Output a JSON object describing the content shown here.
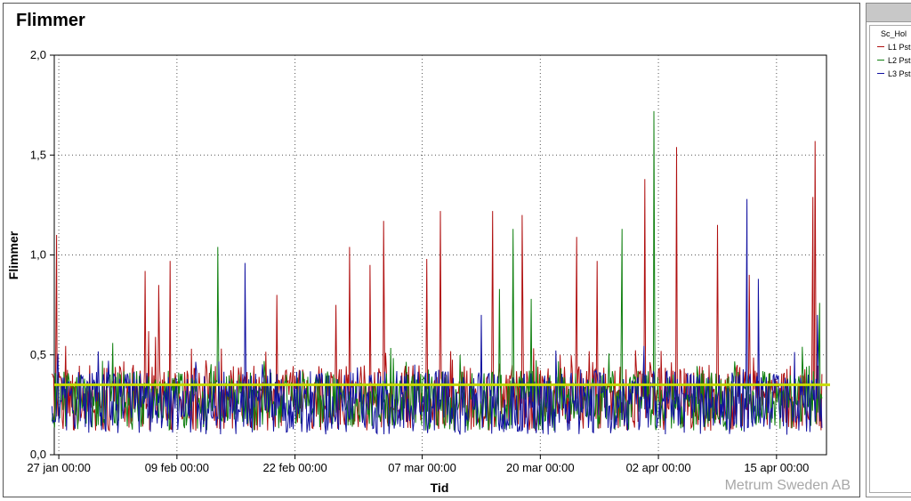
{
  "chart_data": {
    "type": "line",
    "title": "Flimmer",
    "xlabel": "Tid",
    "ylabel": "Flimmer",
    "x_ticks": [
      "27 jan 00:00",
      "09 feb 00:00",
      "22 feb 00:00",
      "07 mar 00:00",
      "20 mar 00:00",
      "02 apr 00:00",
      "15 apr 00:00"
    ],
    "y_ticks": [
      "0,0",
      "0,5",
      "1,0",
      "1,5",
      "2,0"
    ],
    "ylim": [
      0,
      2.0
    ],
    "xlim": [
      "26 jan 12:00",
      "20 apr 12:00"
    ],
    "grid": true,
    "legend_position": "right-panel",
    "reference_line": {
      "value": 0.35,
      "color": "#c8dc00"
    },
    "series": [
      {
        "name": "L1 Pst",
        "color": "#b01010",
        "baseline": [
          0.12,
          0.45
        ],
        "peaks": [
          [
            "26 jan 18:00",
            1.1
          ],
          [
            "05 feb 12:00",
            0.92
          ],
          [
            "07 feb 00:00",
            0.85
          ],
          [
            "08 feb 06:00",
            0.97
          ],
          [
            "20 feb 00:00",
            0.8
          ],
          [
            "26 feb 12:00",
            0.75
          ],
          [
            "28 feb 00:00",
            1.04
          ],
          [
            "01 mar 06:00",
            0.95
          ],
          [
            "02 mar 18:00",
            1.17
          ],
          [
            "07 mar 12:00",
            0.98
          ],
          [
            "09 mar 00:00",
            1.22
          ],
          [
            "14 mar 18:00",
            1.22
          ],
          [
            "18 mar 00:00",
            1.2
          ],
          [
            "24 mar 00:00",
            1.09
          ],
          [
            "26 mar 06:00",
            0.97
          ],
          [
            "31 mar 12:00",
            1.38
          ],
          [
            "04 apr 00:00",
            1.54
          ],
          [
            "08 apr 12:00",
            1.15
          ],
          [
            "12 apr 00:00",
            0.9
          ],
          [
            "19 apr 00:00",
            1.29
          ],
          [
            "19 apr 06:00",
            1.57
          ]
        ]
      },
      {
        "name": "L2 Pst",
        "color": "#108010",
        "baseline": [
          0.12,
          0.42
        ],
        "peaks": [
          [
            "13 feb 12:00",
            1.04
          ],
          [
            "15 mar 12:00",
            0.83
          ],
          [
            "17 mar 00:00",
            1.13
          ],
          [
            "19 mar 00:00",
            0.78
          ],
          [
            "29 mar 00:00",
            1.13
          ],
          [
            "01 apr 12:00",
            1.72
          ],
          [
            "19 apr 18:00",
            0.76
          ]
        ]
      },
      {
        "name": "L3 Pst",
        "color": "#1010a0",
        "baseline": [
          0.1,
          0.42
        ],
        "peaks": [
          [
            "16 feb 12:00",
            0.96
          ],
          [
            "13 mar 12:00",
            0.7
          ],
          [
            "11 apr 18:00",
            1.28
          ],
          [
            "13 apr 00:00",
            0.88
          ],
          [
            "19 apr 12:00",
            0.7
          ]
        ]
      }
    ]
  },
  "legend": {
    "group_label": "Sc_Hol",
    "items": [
      {
        "label": "L1 Pst",
        "color": "#b01010"
      },
      {
        "label": "L2 Pst",
        "color": "#108010"
      },
      {
        "label": "L3 Pst",
        "color": "#1010a0"
      }
    ]
  },
  "watermark": "Metrum Sweden AB"
}
